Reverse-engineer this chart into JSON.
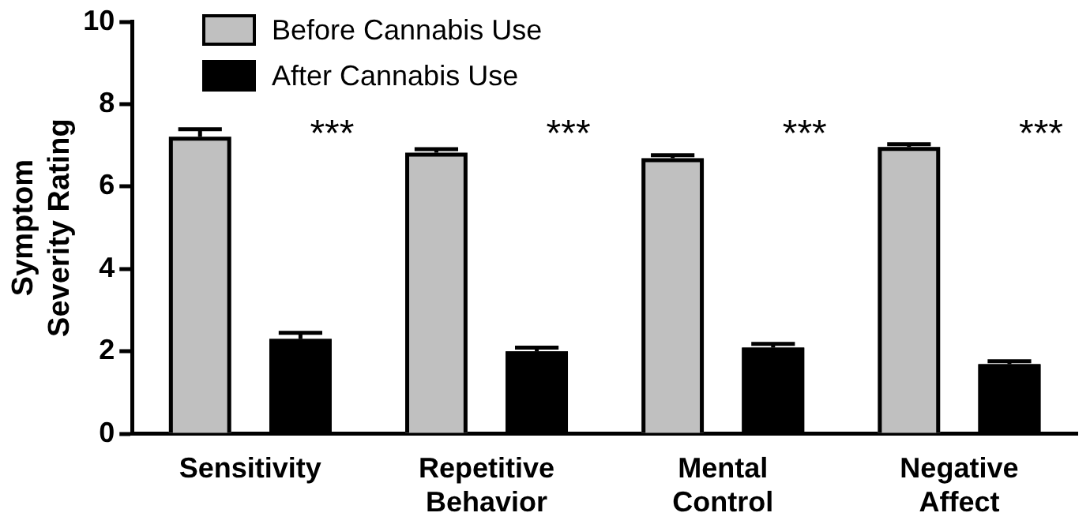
{
  "chart_data": {
    "type": "bar",
    "ylabel": "Symptom Severity Rating",
    "categories": [
      "Sensitivity",
      "Repetitive Behavior",
      "Mental Control",
      "Negative Affect"
    ],
    "series": [
      {
        "name": "Before Cannabis Use",
        "color": "#c0c0c0",
        "values": [
          7.21,
          6.82,
          6.69,
          6.96
        ],
        "errors": [
          0.18,
          0.09,
          0.07,
          0.07
        ]
      },
      {
        "name": "After Cannabis Use",
        "color": "#000000",
        "values": [
          2.3,
          2.0,
          2.09,
          1.69
        ],
        "errors": [
          0.15,
          0.09,
          0.09,
          0.07
        ]
      }
    ],
    "ylim": [
      0,
      10
    ],
    "yticks": [
      0,
      2,
      4,
      6,
      8,
      10
    ],
    "grid": false,
    "legend": "top left",
    "annotations": [
      "***",
      "***",
      "***",
      "***"
    ]
  }
}
